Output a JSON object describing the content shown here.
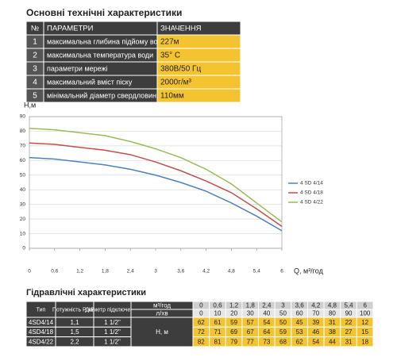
{
  "spec": {
    "title": "Основні технічні характеристики",
    "header": [
      "№",
      "ПАРАМЕТРИ",
      "ЗНАЧЕННЯ"
    ],
    "rows": [
      [
        "1",
        "максимальна глибина підйому води",
        "227м"
      ],
      [
        "2",
        "максимальна температура води",
        "35° C"
      ],
      [
        "3",
        "параметри мережі",
        "380В/50 Гц"
      ],
      [
        "4",
        "максимальний вміст піску",
        "2000г/м³"
      ],
      [
        "5",
        "мінімальний діаметр свердловини",
        "110мм"
      ]
    ]
  },
  "chart_data": {
    "type": "line",
    "y_label": "H,м",
    "x_label": "Q, м³/год",
    "x": [
      0,
      0.6,
      1.2,
      1.8,
      2.4,
      3,
      3.6,
      4.2,
      4.8,
      5.4,
      6
    ],
    "series": [
      {
        "name": "4 SD 4/14",
        "color": "#4f81bd",
        "values": [
          62,
          61,
          59,
          57,
          54,
          50,
          45,
          39,
          31,
          22,
          12
        ]
      },
      {
        "name": "4 SD 4/18",
        "color": "#c0504d",
        "values": [
          72,
          71,
          69,
          67,
          64,
          59,
          53,
          46,
          38,
          27,
          15
        ]
      },
      {
        "name": "4 SD 4/22",
        "color": "#9bbb59",
        "values": [
          82,
          81,
          79,
          77,
          73,
          68,
          62,
          54,
          44,
          31,
          18
        ]
      }
    ],
    "xlim": [
      0,
      6
    ],
    "ylim": [
      0,
      90
    ],
    "xticks": [
      0,
      {
        "value": 0.6,
        "label": "0,6"
      },
      {
        "value": 1.2,
        "label": "1,2"
      },
      {
        "value": 1.8,
        "label": "1,8"
      },
      {
        "value": 2.4,
        "label": "2,4"
      },
      3,
      {
        "value": 3.6,
        "label": "3,6"
      },
      {
        "value": 4.2,
        "label": "4,2"
      },
      {
        "value": 4.8,
        "label": "4,8"
      },
      {
        "value": 5.4,
        "label": "5,4"
      },
      6
    ],
    "yticks": [
      0,
      10,
      20,
      30,
      40,
      50,
      60,
      70,
      80,
      90
    ],
    "grid": true,
    "legend": "right"
  },
  "hydraulic": {
    "title": "Гідравлічні характеристики",
    "header": [
      "Тип",
      "Потужність Р, кВт",
      "Діаметр підключення"
    ],
    "flow_m3h_label": "м³/год",
    "flow_m3h": [
      "0",
      "0,6",
      "1,2",
      "1,8",
      "2,4",
      "3",
      "3,6",
      "4,2",
      "4,8",
      "5,4",
      "6"
    ],
    "flow_lmin_label": "л/хв",
    "flow_lmin": [
      "0",
      "10",
      "20",
      "30",
      "40",
      "50",
      "60",
      "70",
      "80",
      "90",
      "100"
    ],
    "head_label": "Н, м",
    "rows": [
      {
        "type": "4SD4/14",
        "power": "1,1",
        "diameter": "1 1/2\"",
        "head": [
          "62",
          "61",
          "59",
          "57",
          "54",
          "50",
          "45",
          "39",
          "31",
          "22",
          "12"
        ]
      },
      {
        "type": "4SD4/18",
        "power": "1,5",
        "diameter": "1 1/2\"",
        "head": [
          "72",
          "71",
          "69",
          "67",
          "64",
          "59",
          "53",
          "46",
          "38",
          "27",
          "15"
        ]
      },
      {
        "type": "4SD4/22",
        "power": "2,2",
        "diameter": "1 1/2\"",
        "head": [
          "82",
          "81",
          "79",
          "77",
          "73",
          "68",
          "62",
          "54",
          "44",
          "31",
          "18"
        ]
      }
    ]
  }
}
